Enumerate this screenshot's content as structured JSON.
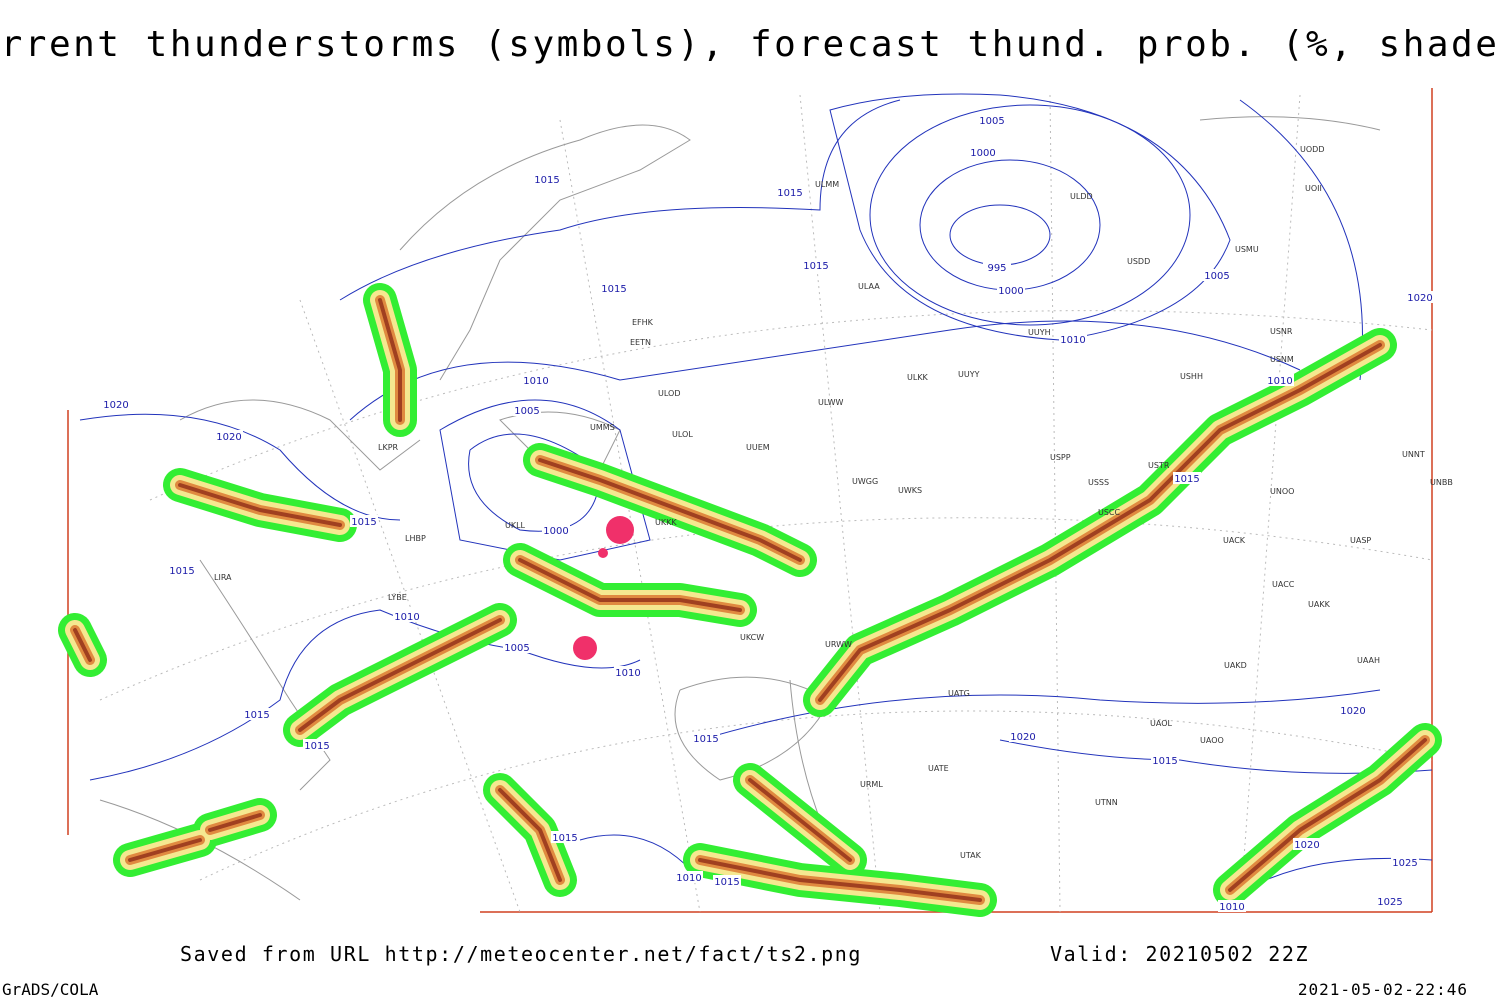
{
  "title": "Current thunderstorms (symbols), forecast thund. prob. (%, shaded)",
  "footer": {
    "source": "Saved from URL http://meteocenter.net/fact/ts2.png",
    "valid": "Valid: 20210502 22Z",
    "software": "GrADS/COLA",
    "timestamp": "2021-05-02-22:46"
  },
  "isobar_labels": [
    1015,
    1015,
    1005,
    1000,
    995,
    1000,
    1015,
    1005,
    1015,
    1020,
    1010,
    1005,
    1010,
    1010,
    1020,
    1020,
    1015,
    1015,
    1000,
    1015,
    1010,
    1005,
    1010,
    1015,
    1015,
    1015,
    1020,
    1020,
    1015,
    1015,
    1020,
    1025,
    1010,
    1015,
    1010,
    1025
  ],
  "stations": [
    "ULMM",
    "ULDD",
    "UODD",
    "UOII",
    "USMU",
    "USDD",
    "ULAA",
    "UUYH",
    "USNR",
    "USNM",
    "USHH",
    "ULKK",
    "UUYY",
    "ULWW",
    "ULOD",
    "ULOL",
    "UUEM",
    "UWGG",
    "UWKS",
    "USPP",
    "USSS",
    "USTR",
    "UNNT",
    "UNBB",
    "UNOO",
    "USCC",
    "UACK",
    "UASP",
    "UACC",
    "UAKK",
    "UAKD",
    "UAAH",
    "UATG",
    "UAOL",
    "UAOO",
    "UTNN",
    "UTAK",
    "UATE",
    "URML",
    "EFHK",
    "EETN",
    "UMMS",
    "UKLL",
    "LIRA",
    "LYBE",
    "LKPR",
    "LHBP",
    "UKKK",
    "UKCW",
    "URWW"
  ]
}
